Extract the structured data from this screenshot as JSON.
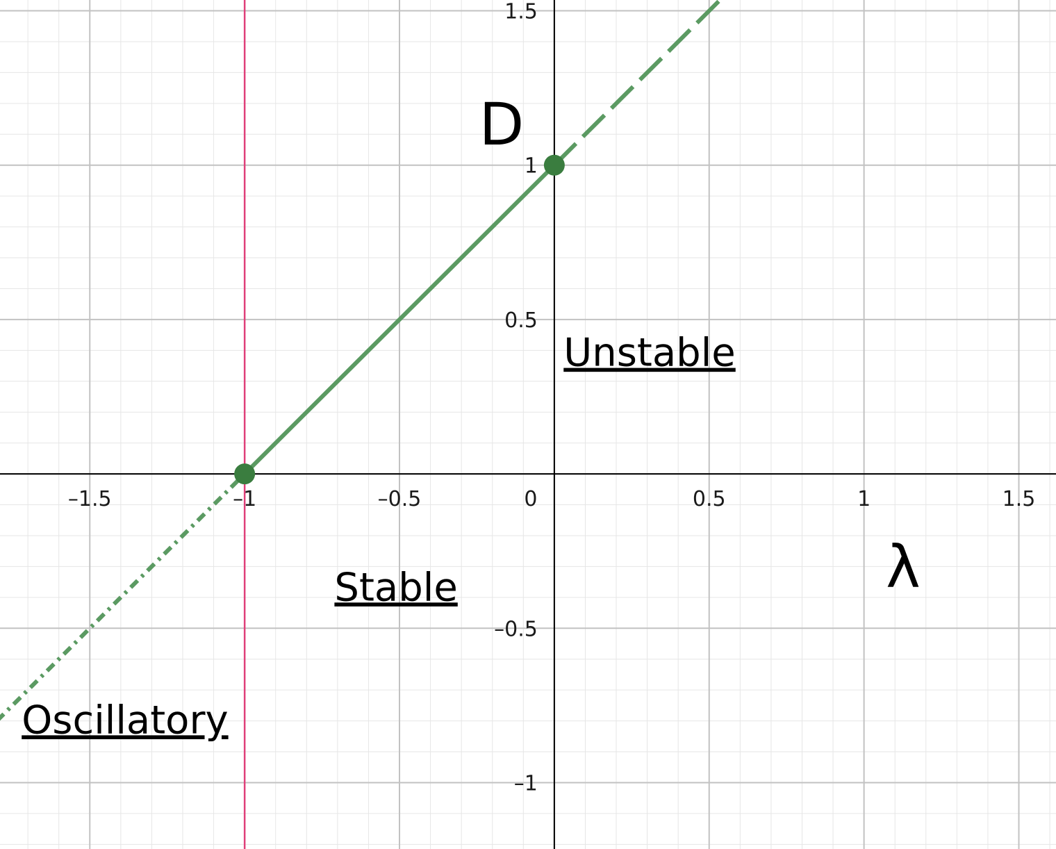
{
  "chart_data": {
    "type": "line",
    "xlabel": "λ",
    "ylabel": "D",
    "xlim": [
      -1.79,
      1.62
    ],
    "ylim": [
      -1.215,
      1.535
    ],
    "grid": true,
    "x_ticks": [
      "–1.5",
      "–1",
      "–0.5",
      "0",
      "0.5",
      "1",
      "1.5"
    ],
    "y_ticks": [
      "1.5",
      "1",
      "0.5",
      "–0.5",
      "–1"
    ],
    "series": [
      {
        "segments": [
          {
            "style": "solid",
            "x": [
              -1,
              0
            ],
            "y": [
              0,
              1
            ]
          },
          {
            "style": "dashed",
            "x": [
              0,
              0.55
            ],
            "y": [
              1,
              1.55
            ]
          },
          {
            "style": "dash-dot",
            "x": [
              -1.8,
              -1
            ],
            "y": [
              -0.8,
              0
            ]
          }
        ],
        "color": "#5b9a62"
      },
      {
        "style": "vertical-line",
        "x": [
          -1,
          -1
        ],
        "y": [
          -1.215,
          1.535
        ],
        "color": "#e0407a"
      }
    ],
    "points": [
      {
        "x": -1,
        "y": 0
      },
      {
        "x": 0,
        "y": 1
      }
    ],
    "annotations": [
      {
        "text": "Unstable",
        "x": 0.03,
        "y": 0.35
      },
      {
        "text": "Stable",
        "x": -0.71,
        "y": -0.41
      },
      {
        "text": "Oscillatory",
        "x": -1.72,
        "y": -0.84
      }
    ],
    "colors": {
      "line": "#5b9a62",
      "point": "#3a7d3f",
      "vline": "#e0407a"
    }
  }
}
